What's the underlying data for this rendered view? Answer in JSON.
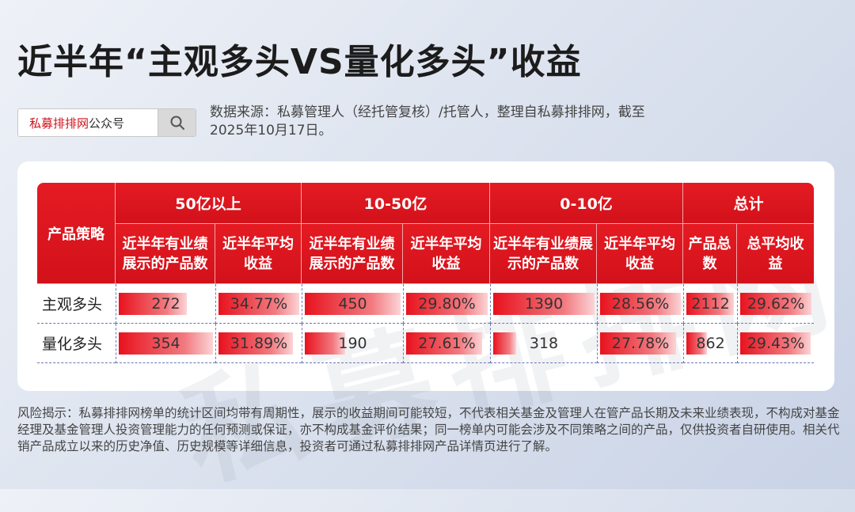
{
  "title": "近半年“主观多头VS量化多头”收益",
  "search": {
    "brand": "私募排排网",
    "suffix": "公众号"
  },
  "source": "数据来源：私募管理人（经托管复核）/托管人，整理自私募排排网，截至2025年10月17日。",
  "table": {
    "strategy_header": "产品策略",
    "groups": [
      "50亿以上",
      "10-50亿",
      "0-10亿",
      "总计"
    ],
    "subheaders": [
      "近半年有业绩展示的产品数",
      "近半年平均收益",
      "近半年有业绩展示的产品数",
      "近半年平均收益",
      "近半年有业绩展示的产品数",
      "近半年平均收益",
      "产品总数",
      "总平均收益"
    ],
    "rows": [
      {
        "label": "主观多头",
        "cells": [
          "272",
          "34.77%",
          "450",
          "29.80%",
          "1390",
          "28.56%",
          "2112",
          "29.62%"
        ],
        "fill": [
          0.72,
          1.0,
          1.0,
          1.0,
          1.0,
          1.0,
          0.98,
          1.0
        ]
      },
      {
        "label": "量化多头",
        "cells": [
          "354",
          "31.89%",
          "190",
          "27.61%",
          "318",
          "27.78%",
          "862",
          "29.43%"
        ],
        "fill": [
          1.0,
          0.92,
          0.42,
          0.93,
          0.23,
          0.94,
          0.42,
          0.99
        ]
      }
    ]
  },
  "risk": "风险揭示：私募排排网榜单的统计区间均带有周期性，展示的收益期间可能较短，不代表相关基金及管理人在管产品长期及未来业绩表现，不构成对基金经理及基金管理人投资管理能力的任何预测或保证，亦不构成基金评价结果；同一榜单内可能会涉及不同策略之间的产品，仅供投资者自研使用。相关代销产品成立以来的历史净值、历史规模等详细信息，投资者可通过私募排排网产品详情页进行了解。",
  "colors": {
    "header_red": "#d2111a",
    "brand_red": "#d0121b",
    "divider": "#6b77b8"
  },
  "icons": {
    "search": "magnifier-icon"
  }
}
